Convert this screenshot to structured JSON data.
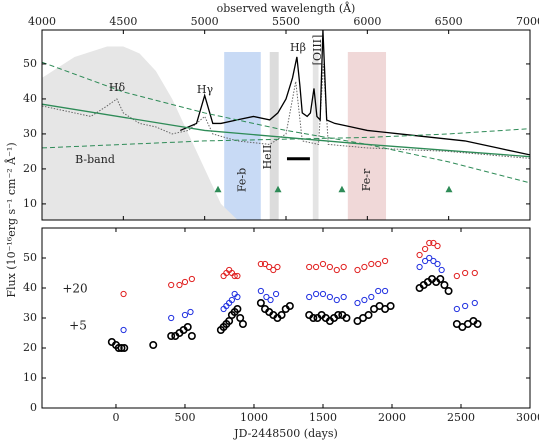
{
  "ylabel": "Flux (10⁻¹⁶erg s⁻¹ cm⁻² Å⁻¹)",
  "chart_data": [
    {
      "type": "line",
      "xlabel": "observed wavelength (Å)",
      "xlim": [
        4000,
        7000
      ],
      "xticks": [
        4000,
        4500,
        5000,
        5500,
        6000,
        6500,
        7000
      ],
      "ylim": [
        5.4,
        59.7
      ],
      "yticks": [
        10,
        20,
        30,
        40,
        50
      ],
      "bands": [
        {
          "label": "Fe-b",
          "range": [
            5120,
            5345
          ],
          "color": "#c8daf5",
          "text_color": "#2c3fd6"
        },
        {
          "range": [
            5400,
            5455
          ],
          "color": "#dcdcdc"
        },
        {
          "range": [
            5665,
            5700
          ],
          "color": "#e4e4e4"
        },
        {
          "label": "Fe-r",
          "range": [
            5880,
            6115
          ],
          "color": "#f0d8d8",
          "text_color": "#d42020"
        }
      ],
      "annotations": [
        "Hδ",
        "Hγ",
        "HeII",
        "Hβ",
        "[OIII]",
        "B-band"
      ],
      "series": [
        {
          "style": "fill",
          "color": "#e6e6e6",
          "x": [
            4000,
            4200,
            4400,
            4500,
            4600,
            4700,
            4800,
            4900,
            5000,
            5100,
            5200
          ],
          "values": [
            46,
            52,
            55,
            55,
            53,
            48,
            40,
            30,
            20,
            10,
            5.5
          ]
        },
        {
          "style": "dotted",
          "color": "#666666",
          "x": [
            4000,
            4100,
            4200,
            4300,
            4400,
            4460,
            4500,
            4600,
            4700,
            4800,
            4900,
            5000,
            5050,
            5200,
            5400,
            5500,
            5560,
            5600,
            5700,
            5730,
            5760,
            6000,
            6500,
            7000
          ],
          "values": [
            38,
            37,
            36,
            35,
            38,
            40,
            36,
            33,
            32,
            30,
            31,
            35,
            30,
            28,
            27,
            30,
            45,
            28,
            27,
            50,
            27,
            26,
            25,
            23
          ]
        },
        {
          "style": "solid",
          "color": "#000000",
          "x": [
            4850,
            4950,
            5000,
            5050,
            5100,
            5200,
            5300,
            5400,
            5450,
            5500,
            5540,
            5567,
            5585,
            5600,
            5630,
            5650,
            5672,
            5690,
            5710,
            5727,
            5750,
            5800,
            5900,
            6000,
            6200,
            6400,
            6600,
            6800,
            7000
          ],
          "values": [
            31,
            33,
            41,
            33,
            33,
            34,
            35,
            34,
            36,
            40,
            46,
            52,
            44,
            36,
            35,
            36,
            43,
            35,
            34,
            59.7,
            34,
            33,
            32,
            31,
            30,
            29,
            28,
            26,
            24
          ]
        },
        {
          "style": "solid",
          "color": "#2e8b57",
          "x": [
            4000,
            5000,
            6000,
            7000
          ],
          "values": [
            38.5,
            31,
            27,
            23.5
          ]
        },
        {
          "style": "dashed",
          "color": "#2e8b57",
          "x": [
            4000,
            4500,
            5000,
            5500,
            6000,
            6500,
            7000
          ],
          "values": [
            50.5,
            42,
            36,
            31,
            27,
            22,
            16
          ]
        },
        {
          "style": "dashed",
          "color": "#2e8b57",
          "x": [
            4000,
            4500,
            5000,
            5500,
            6000,
            6500,
            7000
          ],
          "values": [
            26,
            27,
            28,
            28.5,
            29,
            30,
            31.5
          ]
        }
      ],
      "markers": {
        "color": "#2e8b57",
        "x": [
          5082,
          5451,
          5844,
          6502
        ],
        "values": [
          14.2,
          14.2,
          14.2,
          14.2
        ]
      },
      "segment": {
        "color": "#000000",
        "x": [
          5506,
          5647
        ],
        "values": [
          22.9,
          22.9
        ]
      }
    },
    {
      "type": "scatter",
      "xlabel": "JD-2448500 (days)",
      "xlim": [
        -536,
        3000
      ],
      "xticks": [
        0,
        500,
        1000,
        1500,
        2000,
        2500,
        3000
      ],
      "ylim": [
        0,
        60
      ],
      "yticks": [
        0,
        10,
        20,
        30,
        40,
        50
      ],
      "series": [
        {
          "name": "+20",
          "color": "#e02020",
          "x": [
            55,
            400,
            460,
            500,
            550,
            780,
            800,
            820,
            840,
            860,
            880,
            1050,
            1080,
            1110,
            1140,
            1170,
            1400,
            1450,
            1500,
            1550,
            1600,
            1650,
            1750,
            1800,
            1850,
            1900,
            1950,
            2200,
            2240,
            2270,
            2300,
            2330,
            2470,
            2530,
            2600
          ],
          "values": [
            38,
            41,
            41,
            42,
            43,
            44,
            45,
            46,
            45,
            44,
            44,
            48,
            48,
            47,
            46,
            47,
            47,
            47,
            48,
            47,
            46,
            47,
            46,
            47,
            48,
            48,
            49,
            51,
            53,
            55,
            55,
            54,
            44,
            45,
            45
          ]
        },
        {
          "name": "+5",
          "color": "#2030e0",
          "x": [
            55,
            400,
            500,
            540,
            780,
            800,
            820,
            840,
            860,
            880,
            1050,
            1090,
            1120,
            1160,
            1400,
            1450,
            1500,
            1550,
            1600,
            1650,
            1750,
            1800,
            1850,
            1900,
            1950,
            2200,
            2240,
            2270,
            2300,
            2330,
            2360,
            2470,
            2530,
            2600
          ],
          "values": [
            26,
            30,
            31,
            32,
            33,
            34,
            35,
            36,
            38,
            37,
            39,
            37,
            36,
            38,
            37,
            38,
            38,
            37,
            36,
            37,
            35,
            36,
            37,
            39,
            39,
            47,
            49,
            50,
            49,
            48,
            46,
            33,
            34,
            35
          ]
        },
        {
          "color": "#000000",
          "x": [
            -30,
            0,
            20,
            40,
            60,
            270,
            400,
            430,
            460,
            490,
            520,
            550,
            760,
            780,
            800,
            820,
            840,
            860,
            880,
            900,
            920,
            1050,
            1080,
            1110,
            1140,
            1170,
            1200,
            1230,
            1260,
            1400,
            1430,
            1460,
            1490,
            1520,
            1550,
            1580,
            1610,
            1640,
            1670,
            1750,
            1790,
            1830,
            1870,
            1910,
            1950,
            1990,
            2200,
            2230,
            2260,
            2290,
            2320,
            2350,
            2380,
            2410,
            2470,
            2510,
            2550,
            2590,
            2620
          ],
          "values": [
            22,
            21,
            20,
            20,
            20,
            21,
            24,
            24,
            25,
            26,
            27,
            24,
            26,
            27,
            28,
            29,
            31,
            32,
            33,
            30,
            28,
            35,
            33,
            32,
            31,
            30,
            31,
            33,
            34,
            31,
            30,
            30,
            31,
            30,
            29,
            30,
            31,
            31,
            30,
            29,
            30,
            31,
            33,
            34,
            33,
            34,
            40,
            41,
            42,
            43,
            42,
            43,
            41,
            39,
            28,
            27,
            28,
            29,
            28
          ]
        }
      ]
    }
  ]
}
